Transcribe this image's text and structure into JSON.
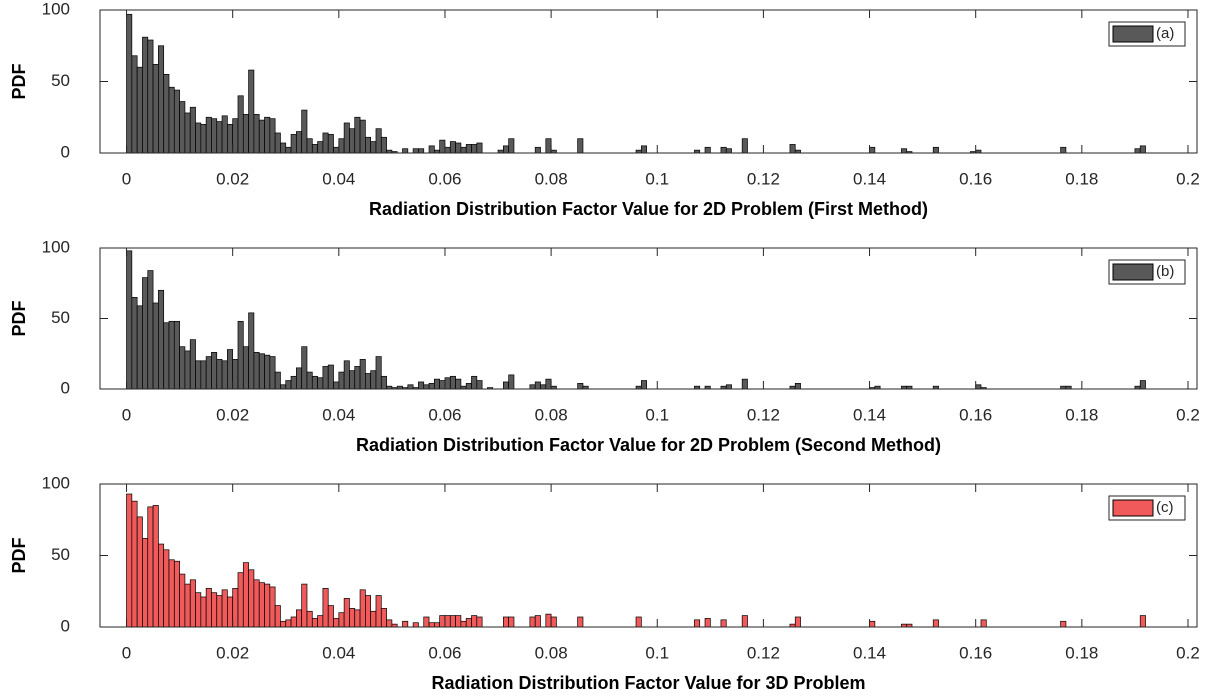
{
  "chart_data": [
    {
      "type": "histogram",
      "xlabel": "Radiation Distribution Factor Value for 2D Problem (First Method)",
      "ylabel": "PDF",
      "bins": [
        0,
        0.001,
        0.002,
        0.003,
        0.004,
        0.005,
        0.006,
        0.007,
        0.008,
        0.009,
        0.01,
        0.011,
        0.012,
        0.013,
        0.014,
        0.015,
        0.016,
        0.017,
        0.018,
        0.019,
        0.02,
        0.021,
        0.022,
        0.023,
        0.024,
        0.025,
        0.026,
        0.027,
        0.028,
        0.029,
        0.03,
        0.031,
        0.032,
        0.033,
        0.034,
        0.035,
        0.036,
        0.037,
        0.038,
        0.039,
        0.04,
        0.041,
        0.042,
        0.043,
        0.044,
        0.045,
        0.046,
        0.047,
        0.048,
        0.049,
        0.05,
        0.051,
        0.052,
        0.053,
        0.054,
        0.055,
        0.056,
        0.057,
        0.058,
        0.059,
        0.06,
        0.061,
        0.062,
        0.063,
        0.064,
        0.065,
        0.066,
        0.067,
        0.068,
        0.069,
        0.07,
        0.071,
        0.072,
        0.073,
        0.074,
        0.075,
        0.076,
        0.077,
        0.078,
        0.079,
        0.08,
        0.081,
        0.082,
        0.083,
        0.084,
        0.085,
        0.086,
        0.087,
        0.088,
        0.089,
        0.09,
        0.091,
        0.092,
        0.093,
        0.094,
        0.095,
        0.096,
        0.097,
        0.098,
        0.099,
        0.1,
        0.101,
        0.102,
        0.103,
        0.104,
        0.105,
        0.106,
        0.107,
        0.108,
        0.109,
        0.11,
        0.111,
        0.112,
        0.113,
        0.114,
        0.115,
        0.116,
        0.117,
        0.118,
        0.119,
        0.12,
        0.121,
        0.122,
        0.123,
        0.124,
        0.125,
        0.126,
        0.127,
        0.128,
        0.129,
        0.13,
        0.131,
        0.132,
        0.133,
        0.134,
        0.135,
        0.136,
        0.137,
        0.138,
        0.139,
        0.14,
        0.141,
        0.142,
        0.143,
        0.144,
        0.145,
        0.146,
        0.147,
        0.148,
        0.149,
        0.15,
        0.151,
        0.152,
        0.153,
        0.154,
        0.155,
        0.156,
        0.157,
        0.158,
        0.159,
        0.16,
        0.161,
        0.162,
        0.163,
        0.164,
        0.165,
        0.166,
        0.167,
        0.168,
        0.169,
        0.17,
        0.171,
        0.172,
        0.173,
        0.174,
        0.175,
        0.176,
        0.177,
        0.178,
        0.179,
        0.18,
        0.181,
        0.182,
        0.183,
        0.184,
        0.185,
        0.186,
        0.187,
        0.188,
        0.189,
        0.19,
        0.191,
        0.192
      ],
      "series": [
        {
          "name": "(a)",
          "color": "#595959",
          "values": [
            97,
            68,
            60,
            81,
            79,
            62,
            75,
            55,
            46,
            44,
            36,
            28,
            32,
            21,
            20,
            25,
            24,
            22,
            26,
            20,
            24,
            40,
            27,
            58,
            27,
            23,
            25,
            24,
            14,
            7,
            4,
            13,
            15,
            30,
            10,
            6,
            8,
            14,
            13,
            4,
            10,
            21,
            17,
            25,
            23,
            11,
            8,
            17,
            11,
            2,
            1,
            0,
            3,
            0,
            3,
            3,
            0,
            5,
            2,
            9,
            4,
            8,
            7,
            4,
            6,
            6,
            7,
            0,
            0,
            0,
            2,
            5,
            10,
            0,
            0,
            0,
            0,
            4,
            0,
            10,
            2,
            0,
            0,
            0,
            0,
            10,
            0,
            0,
            0,
            0,
            0,
            0,
            0,
            0,
            0,
            0,
            2,
            5,
            0,
            0,
            0,
            0,
            0,
            0,
            0,
            0,
            0,
            2,
            0,
            4,
            0,
            0,
            4,
            3,
            0,
            0,
            10,
            0,
            0,
            0,
            0,
            0,
            0,
            0,
            0,
            6,
            2,
            0,
            0,
            0,
            0,
            0,
            0,
            0,
            0,
            0,
            0,
            0,
            0,
            0,
            4,
            0,
            0,
            0,
            0,
            0,
            3,
            1,
            0,
            0,
            0,
            0,
            4,
            0,
            0,
            0,
            0,
            0,
            0,
            1,
            2,
            0,
            0,
            0,
            0,
            0,
            0,
            0,
            0,
            0,
            0,
            0,
            0,
            0,
            0,
            0,
            4,
            0,
            0,
            0,
            0,
            0,
            0,
            0,
            0,
            0,
            0,
            0,
            0,
            0,
            3,
            5
          ]
        }
      ],
      "xlim": [
        -0.005,
        0.2017
      ],
      "ylim": [
        0,
        100
      ],
      "xticks": [
        0,
        0.02,
        0.04,
        0.06,
        0.08,
        0.1,
        0.12,
        0.14,
        0.16,
        0.18,
        0.2
      ],
      "yticks": [
        0,
        50,
        100
      ],
      "legend": "upper right"
    },
    {
      "type": "histogram",
      "xlabel": "Radiation Distribution Factor Value for 2D Problem (Second Method)",
      "ylabel": "PDF",
      "bins": [
        0,
        0.001,
        0.002,
        0.003,
        0.004,
        0.005,
        0.006,
        0.007,
        0.008,
        0.009,
        0.01,
        0.011,
        0.012,
        0.013,
        0.014,
        0.015,
        0.016,
        0.017,
        0.018,
        0.019,
        0.02,
        0.021,
        0.022,
        0.023,
        0.024,
        0.025,
        0.026,
        0.027,
        0.028,
        0.029,
        0.03,
        0.031,
        0.032,
        0.033,
        0.034,
        0.035,
        0.036,
        0.037,
        0.038,
        0.039,
        0.04,
        0.041,
        0.042,
        0.043,
        0.044,
        0.045,
        0.046,
        0.047,
        0.048,
        0.049,
        0.05,
        0.051,
        0.052,
        0.053,
        0.054,
        0.055,
        0.056,
        0.057,
        0.058,
        0.059,
        0.06,
        0.061,
        0.062,
        0.063,
        0.064,
        0.065,
        0.066,
        0.067,
        0.068,
        0.069,
        0.07,
        0.071,
        0.072,
        0.073,
        0.074,
        0.075,
        0.076,
        0.077,
        0.078,
        0.079,
        0.08,
        0.081,
        0.082,
        0.083,
        0.084,
        0.085,
        0.086,
        0.087,
        0.088,
        0.089,
        0.09,
        0.091,
        0.092,
        0.093,
        0.094,
        0.095,
        0.096,
        0.097,
        0.098,
        0.099,
        0.1,
        0.101,
        0.102,
        0.103,
        0.104,
        0.105,
        0.106,
        0.107,
        0.108,
        0.109,
        0.11,
        0.111,
        0.112,
        0.113,
        0.114,
        0.115,
        0.116,
        0.117,
        0.118,
        0.119,
        0.12,
        0.121,
        0.122,
        0.123,
        0.124,
        0.125,
        0.126,
        0.127,
        0.128,
        0.129,
        0.13,
        0.131,
        0.132,
        0.133,
        0.134,
        0.135,
        0.136,
        0.137,
        0.138,
        0.139,
        0.14,
        0.141,
        0.142,
        0.143,
        0.144,
        0.145,
        0.146,
        0.147,
        0.148,
        0.149,
        0.15,
        0.151,
        0.152,
        0.153,
        0.154,
        0.155,
        0.156,
        0.157,
        0.158,
        0.159,
        0.16,
        0.161,
        0.162,
        0.163,
        0.164,
        0.165,
        0.166,
        0.167,
        0.168,
        0.169,
        0.17,
        0.171,
        0.172,
        0.173,
        0.174,
        0.175,
        0.176,
        0.177,
        0.178,
        0.179,
        0.18,
        0.181,
        0.182,
        0.183,
        0.184,
        0.185,
        0.186,
        0.187,
        0.188,
        0.189,
        0.19,
        0.191,
        0.192
      ],
      "series": [
        {
          "name": "(b)",
          "color": "#595959",
          "values": [
            98,
            65,
            59,
            79,
            84,
            61,
            70,
            47,
            48,
            48,
            30,
            27,
            35,
            20,
            20,
            23,
            26,
            21,
            20,
            28,
            21,
            48,
            30,
            54,
            26,
            25,
            24,
            23,
            12,
            3,
            6,
            9,
            15,
            30,
            12,
            9,
            8,
            16,
            17,
            5,
            12,
            20,
            13,
            16,
            21,
            11,
            13,
            23,
            9,
            2,
            1,
            2,
            1,
            3,
            1,
            5,
            3,
            4,
            7,
            6,
            8,
            9,
            7,
            2,
            4,
            9,
            6,
            0,
            1,
            0,
            0,
            5,
            10,
            0,
            0,
            0,
            3,
            5,
            3,
            7,
            2,
            0,
            0,
            0,
            0,
            4,
            2,
            0,
            0,
            0,
            0,
            0,
            0,
            0,
            0,
            0,
            2,
            6,
            0,
            0,
            0,
            0,
            0,
            0,
            0,
            0,
            0,
            2,
            0,
            2,
            0,
            0,
            2,
            3,
            0,
            0,
            7,
            0,
            0,
            0,
            0,
            0,
            0,
            0,
            0,
            2,
            4,
            0,
            0,
            0,
            0,
            0,
            0,
            0,
            0,
            0,
            0,
            0,
            0,
            0,
            1,
            2,
            0,
            0,
            0,
            0,
            2,
            2,
            0,
            0,
            0,
            0,
            2,
            0,
            0,
            0,
            0,
            0,
            0,
            0,
            3,
            1,
            0,
            0,
            0,
            0,
            0,
            0,
            0,
            0,
            0,
            0,
            0,
            0,
            0,
            0,
            2,
            2,
            0,
            0,
            0,
            0,
            0,
            0,
            0,
            0,
            0,
            0,
            0,
            0,
            2,
            6
          ]
        }
      ],
      "xlim": [
        -0.005,
        0.2017
      ],
      "ylim": [
        0,
        100
      ],
      "xticks": [
        0,
        0.02,
        0.04,
        0.06,
        0.08,
        0.1,
        0.12,
        0.14,
        0.16,
        0.18,
        0.2
      ],
      "yticks": [
        0,
        50,
        100
      ],
      "legend": "upper right"
    },
    {
      "type": "histogram",
      "xlabel": "Radiation Distribution Factor Value for 3D Problem",
      "ylabel": "PDF",
      "bins": [
        0,
        0.001,
        0.002,
        0.003,
        0.004,
        0.005,
        0.006,
        0.007,
        0.008,
        0.009,
        0.01,
        0.011,
        0.012,
        0.013,
        0.014,
        0.015,
        0.016,
        0.017,
        0.018,
        0.019,
        0.02,
        0.021,
        0.022,
        0.023,
        0.024,
        0.025,
        0.026,
        0.027,
        0.028,
        0.029,
        0.03,
        0.031,
        0.032,
        0.033,
        0.034,
        0.035,
        0.036,
        0.037,
        0.038,
        0.039,
        0.04,
        0.041,
        0.042,
        0.043,
        0.044,
        0.045,
        0.046,
        0.047,
        0.048,
        0.049,
        0.05,
        0.051,
        0.052,
        0.053,
        0.054,
        0.055,
        0.056,
        0.057,
        0.058,
        0.059,
        0.06,
        0.061,
        0.062,
        0.063,
        0.064,
        0.065,
        0.066,
        0.067,
        0.068,
        0.069,
        0.07,
        0.071,
        0.072,
        0.073,
        0.074,
        0.075,
        0.076,
        0.077,
        0.078,
        0.079,
        0.08,
        0.081,
        0.082,
        0.083,
        0.084,
        0.085,
        0.086,
        0.087,
        0.088,
        0.089,
        0.09,
        0.091,
        0.092,
        0.093,
        0.094,
        0.095,
        0.096,
        0.097,
        0.098,
        0.099,
        0.1,
        0.101,
        0.102,
        0.103,
        0.104,
        0.105,
        0.106,
        0.107,
        0.108,
        0.109,
        0.11,
        0.111,
        0.112,
        0.113,
        0.114,
        0.115,
        0.116,
        0.117,
        0.118,
        0.119,
        0.12,
        0.121,
        0.122,
        0.123,
        0.124,
        0.125,
        0.126,
        0.127,
        0.128,
        0.129,
        0.13,
        0.131,
        0.132,
        0.133,
        0.134,
        0.135,
        0.136,
        0.137,
        0.138,
        0.139,
        0.14,
        0.141,
        0.142,
        0.143,
        0.144,
        0.145,
        0.146,
        0.147,
        0.148,
        0.149,
        0.15,
        0.151,
        0.152,
        0.153,
        0.154,
        0.155,
        0.156,
        0.157,
        0.158,
        0.159,
        0.16,
        0.161,
        0.162,
        0.163,
        0.164,
        0.165,
        0.166,
        0.167,
        0.168,
        0.169,
        0.17,
        0.171,
        0.172,
        0.173,
        0.174,
        0.175,
        0.176,
        0.177,
        0.178,
        0.179,
        0.18,
        0.181,
        0.182,
        0.183,
        0.184,
        0.185,
        0.186,
        0.187,
        0.188,
        0.189,
        0.19,
        0.191,
        0.192
      ],
      "series": [
        {
          "name": "(c)",
          "color": "#f05a5a",
          "values": [
            93,
            88,
            77,
            62,
            84,
            85,
            58,
            54,
            47,
            46,
            37,
            30,
            33,
            24,
            21,
            27,
            24,
            22,
            26,
            21,
            27,
            38,
            45,
            40,
            33,
            31,
            30,
            28,
            15,
            4,
            5,
            7,
            12,
            30,
            11,
            6,
            8,
            27,
            15,
            6,
            10,
            20,
            13,
            12,
            26,
            22,
            11,
            22,
            13,
            5,
            2,
            0,
            4,
            0,
            3,
            0,
            7,
            3,
            3,
            8,
            8,
            8,
            8,
            4,
            6,
            8,
            7,
            0,
            0,
            0,
            0,
            7,
            7,
            0,
            0,
            0,
            7,
            8,
            0,
            9,
            7,
            0,
            0,
            0,
            0,
            7,
            0,
            0,
            0,
            0,
            0,
            0,
            0,
            0,
            0,
            0,
            7,
            0,
            0,
            0,
            0,
            0,
            0,
            0,
            0,
            0,
            0,
            5,
            0,
            6,
            0,
            0,
            5,
            0,
            0,
            0,
            8,
            0,
            0,
            0,
            0,
            0,
            0,
            0,
            0,
            2,
            7,
            0,
            0,
            0,
            0,
            0,
            0,
            0,
            0,
            0,
            0,
            0,
            0,
            0,
            4,
            0,
            0,
            0,
            0,
            0,
            2,
            2,
            0,
            0,
            0,
            0,
            5,
            0,
            0,
            0,
            0,
            0,
            0,
            0,
            0,
            5,
            0,
            0,
            0,
            0,
            0,
            0,
            0,
            0,
            0,
            0,
            0,
            0,
            0,
            0,
            4,
            0,
            0,
            0,
            0,
            0,
            0,
            0,
            0,
            0,
            0,
            0,
            0,
            0,
            0,
            8
          ]
        }
      ],
      "xlim": [
        -0.005,
        0.2017
      ],
      "ylim": [
        0,
        100
      ],
      "xticks": [
        0,
        0.02,
        0.04,
        0.06,
        0.08,
        0.1,
        0.12,
        0.14,
        0.16,
        0.18,
        0.2
      ],
      "yticks": [
        0,
        50,
        100
      ],
      "legend": "upper right"
    }
  ]
}
